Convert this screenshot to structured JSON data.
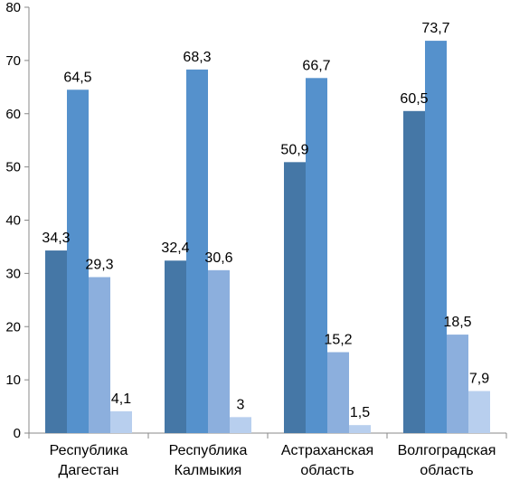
{
  "chart_data": {
    "type": "bar",
    "categories": [
      [
        "Республика",
        "Дагестан"
      ],
      [
        "Республика",
        "Калмыкия"
      ],
      [
        "Астраханская",
        "область"
      ],
      [
        "Волгоградская",
        "область"
      ]
    ],
    "series": [
      {
        "values": [
          34.3,
          32.4,
          50.9,
          60.5
        ],
        "labels": [
          "34,3",
          "32,4",
          "50,9",
          "60,5"
        ],
        "color": "#4577A6"
      },
      {
        "values": [
          64.5,
          68.3,
          66.7,
          73.7
        ],
        "labels": [
          "64,5",
          "68,3",
          "66,7",
          "73,7"
        ],
        "color": "#5591CC"
      },
      {
        "values": [
          29.3,
          30.6,
          15.2,
          18.5
        ],
        "labels": [
          "29,3",
          "30,6",
          "15,2",
          "18,5"
        ],
        "color": "#8CAFDD"
      },
      {
        "values": [
          4.1,
          3,
          1.5,
          7.9
        ],
        "labels": [
          "4,1",
          "3",
          "1,5",
          "7,9"
        ],
        "color": "#B8CFEE"
      }
    ],
    "yticks": [
      "0",
      "10",
      "20",
      "30",
      "40",
      "50",
      "60",
      "70",
      "80"
    ],
    "ylim": [
      0,
      80
    ],
    "grid": false,
    "legend": "none"
  }
}
